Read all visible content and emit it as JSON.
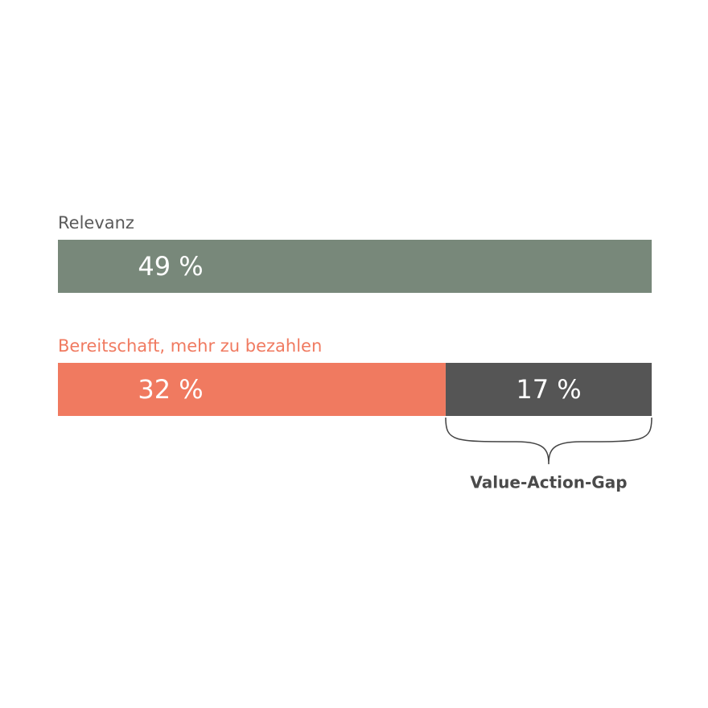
{
  "chart_data": {
    "type": "bar",
    "orientation": "horizontal",
    "stacked": true,
    "categories": [
      "Relevanz",
      "Bereitschaft, mehr zu bezahlen"
    ],
    "category_colors": [
      "#5a5a5a",
      "#f07a60"
    ],
    "series": [
      {
        "colors": [
          "#78887a",
          "#f07a60"
        ],
        "values": [
          49,
          32
        ],
        "value_labels": [
          "49 %",
          "32 %"
        ]
      },
      {
        "color": "#555555",
        "values": [
          null,
          17
        ],
        "value_labels": [
          null,
          "17 %"
        ]
      }
    ],
    "xlim": [
      0,
      49
    ],
    "annotation": "Value-Action-Gap"
  }
}
